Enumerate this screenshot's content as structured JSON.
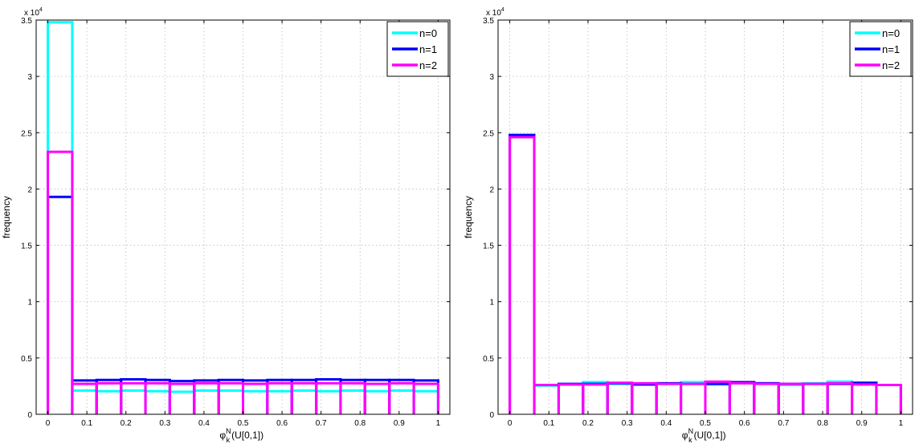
{
  "chart_data": [
    {
      "type": "bar",
      "xlabel": "φ",
      "xlabel_sup": "N",
      "xlabel_sub": "k",
      "xlabel_rest": "(U[0,1])",
      "ylabel": "frequency",
      "y_exponent": "x 10",
      "y_exponent_power": "4",
      "xlim": [
        -0.03,
        1.03
      ],
      "ylim": [
        0,
        35000
      ],
      "xticks": [
        0,
        0.1,
        0.2,
        0.3,
        0.4,
        0.5,
        0.6,
        0.7,
        0.8,
        0.9,
        1
      ],
      "xtick_labels": [
        "0",
        "0.1",
        "0.2",
        "0.3",
        "0.4",
        "0.5",
        "0.6",
        "0.7",
        "0.8",
        "0.9",
        "1"
      ],
      "yticks": [
        0,
        5000,
        10000,
        15000,
        20000,
        25000,
        30000,
        35000
      ],
      "ytick_labels": [
        "0",
        "0.5",
        "1",
        "1.5",
        "2",
        "2.5",
        "3",
        "3.5"
      ],
      "grid": true,
      "legend_position": "top-right",
      "bin_edges": [
        0,
        0.0625,
        0.125,
        0.1875,
        0.25,
        0.3125,
        0.375,
        0.4375,
        0.5,
        0.5625,
        0.625,
        0.6875,
        0.75,
        0.8125,
        0.875,
        0.9375,
        1.0
      ],
      "series": [
        {
          "name": "n=0",
          "color": "#00ffff",
          "values": [
            34800,
            2100,
            2050,
            2100,
            2050,
            2000,
            2100,
            2100,
            2050,
            2050,
            2100,
            2050,
            2100,
            2050,
            2100,
            2050
          ]
        },
        {
          "name": "n=1",
          "color": "#0000ff",
          "values": [
            19300,
            3000,
            3050,
            3100,
            3050,
            2950,
            3000,
            3050,
            3000,
            3050,
            3050,
            3100,
            3050,
            3050,
            3050,
            3000
          ]
        },
        {
          "name": "n=2",
          "color": "#ff00ff",
          "values": [
            23300,
            2700,
            2750,
            2750,
            2750,
            2700,
            2750,
            2750,
            2700,
            2750,
            2750,
            2750,
            2750,
            2700,
            2750,
            2700
          ]
        }
      ]
    },
    {
      "type": "bar",
      "xlabel": "φ",
      "xlabel_sup": "N",
      "xlabel_sub": "k",
      "xlabel_rest": "(U[0,1])",
      "ylabel": "frequency",
      "y_exponent": "x 10",
      "y_exponent_power": "4",
      "xlim": [
        -0.03,
        1.03
      ],
      "ylim": [
        0,
        35000
      ],
      "xticks": [
        0,
        0.1,
        0.2,
        0.3,
        0.4,
        0.5,
        0.6,
        0.7,
        0.8,
        0.9,
        1
      ],
      "xtick_labels": [
        "0",
        "0.1",
        "0.2",
        "0.3",
        "0.4",
        "0.5",
        "0.6",
        "0.7",
        "0.8",
        "0.9",
        "1"
      ],
      "yticks": [
        0,
        5000,
        10000,
        15000,
        20000,
        25000,
        30000,
        35000
      ],
      "ytick_labels": [
        "0",
        "0.5",
        "1",
        "1.5",
        "2",
        "2.5",
        "3",
        "3.5"
      ],
      "grid": true,
      "legend_position": "top-right",
      "bin_edges": [
        0,
        0.0625,
        0.125,
        0.1875,
        0.25,
        0.3125,
        0.375,
        0.4375,
        0.5,
        0.5625,
        0.625,
        0.6875,
        0.75,
        0.8125,
        0.875,
        0.9375,
        1.0
      ],
      "series": [
        {
          "name": "n=0",
          "color": "#00ffff",
          "values": [
            24600,
            2550,
            2650,
            2850,
            2700,
            2650,
            2700,
            2850,
            2650,
            2750,
            2750,
            2600,
            2750,
            2900,
            2700,
            2600
          ]
        },
        {
          "name": "n=1",
          "color": "#0000ff",
          "values": [
            24800,
            2600,
            2700,
            2700,
            2750,
            2650,
            2750,
            2700,
            2700,
            2850,
            2750,
            2700,
            2700,
            2700,
            2800,
            2600
          ]
        },
        {
          "name": "n=2",
          "color": "#ff00ff",
          "values": [
            24600,
            2600,
            2650,
            2650,
            2800,
            2750,
            2700,
            2700,
            2900,
            2750,
            2700,
            2700,
            2700,
            2750,
            2650,
            2600
          ]
        }
      ]
    }
  ]
}
